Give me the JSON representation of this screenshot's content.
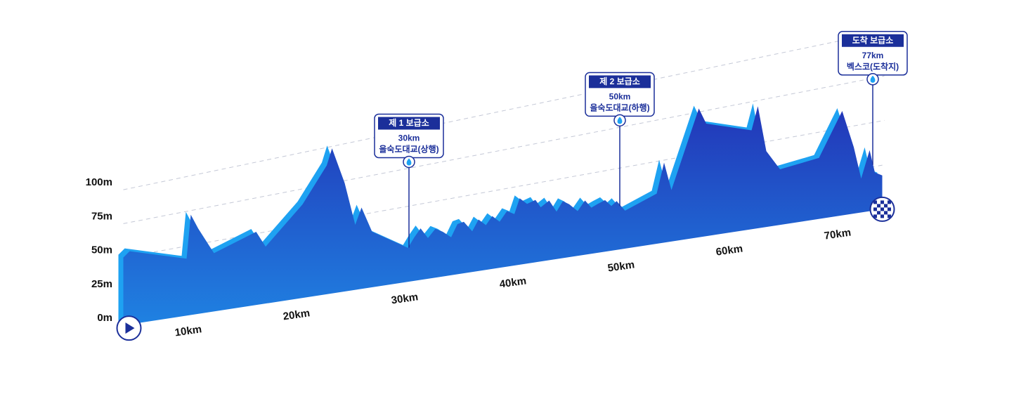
{
  "chart_data": {
    "type": "area",
    "color": "#2444c4",
    "edge_color": "#1ea2f2",
    "x": [
      2.9,
      3.5,
      8.9,
      9.3,
      10,
      11.5,
      15.5,
      16.4,
      19.9,
      22.2,
      22.7,
      23.9,
      24.9,
      25.5,
      26.5,
      29.9,
      30.5,
      31.1,
      31.8,
      32.5,
      33.2,
      34,
      34.6,
      35.2,
      36,
      36.6,
      37.3,
      37.9,
      38.6,
      39.3,
      40,
      40.5,
      41.2,
      42,
      42.5,
      43.3,
      44,
      44.6,
      45.2,
      46,
      46.7,
      47.3,
      47.9,
      48.6,
      49.2,
      49.7,
      50.5,
      53.5,
      54.2,
      54.9,
      57.5,
      58.2,
      62.5,
      63.1,
      63.9,
      65.2,
      68.9,
      71.1,
      72.2,
      72.9,
      73.7,
      74.2,
      74.9
    ],
    "values": [
      50,
      54,
      42,
      74,
      63,
      43,
      54,
      42,
      69,
      95,
      107,
      80,
      48,
      60,
      41,
      25,
      32,
      38,
      30,
      36,
      33,
      28,
      37,
      38,
      30,
      38,
      33,
      39,
      34,
      41,
      38,
      49,
      44,
      46,
      40,
      44,
      35,
      42,
      39,
      33,
      40,
      34,
      36,
      38,
      33,
      36,
      28,
      37,
      59,
      38,
      95,
      83,
      73,
      90,
      56,
      41,
      45,
      77,
      49,
      25,
      45,
      28,
      25
    ],
    "xlim": [
      0,
      80
    ],
    "xticks": [
      {
        "value": 10,
        "label": "10km"
      },
      {
        "value": 20,
        "label": "20km"
      },
      {
        "value": 30,
        "label": "30km"
      },
      {
        "value": 40,
        "label": "40km"
      },
      {
        "value": 50,
        "label": "50km"
      },
      {
        "value": 60,
        "label": "60km"
      },
      {
        "value": 70,
        "label": "70km"
      }
    ],
    "ylim": [
      0,
      100
    ],
    "yticks": [
      {
        "value": 0,
        "label": "0m"
      },
      {
        "value": 25,
        "label": "25m"
      },
      {
        "value": 50,
        "label": "50m"
      },
      {
        "value": 75,
        "label": "75m"
      },
      {
        "value": 100,
        "label": "100m"
      }
    ],
    "grid": true,
    "annotations": [
      {
        "title": "제 1 보급소",
        "distance": "30km",
        "place": "을숙도대교(상행)",
        "x": 30
      },
      {
        "title": "제 2 보급소",
        "distance": "50km",
        "place": "을숙도대교(하행)",
        "x": 50
      },
      {
        "title": "도착 보급소",
        "distance": "77km",
        "place": "벡스코(도착지)",
        "x": 74
      }
    ]
  }
}
